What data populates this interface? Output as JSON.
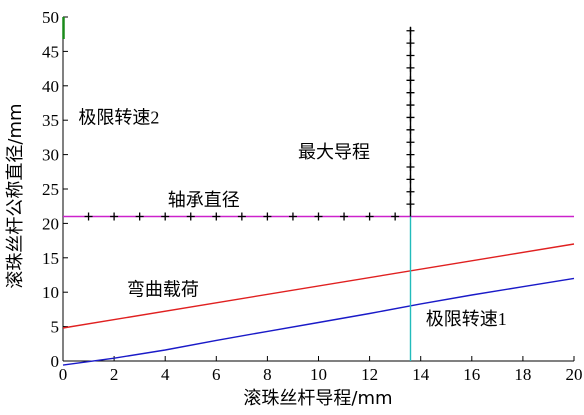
{
  "chart_data": {
    "type": "line",
    "xlabel": "滚珠丝杆导程/mm",
    "ylabel": "滚珠丝杆公称直径/mm",
    "xlim": [
      0,
      20
    ],
    "ylim": [
      0,
      50
    ],
    "xticks": [
      "0",
      "2",
      "4",
      "6",
      "8",
      "10",
      "12",
      "14",
      "16",
      "18",
      "20"
    ],
    "yticks": [
      "0",
      "5",
      "10",
      "15",
      "20",
      "25",
      "30",
      "35",
      "40",
      "45",
      "50"
    ],
    "grid": false,
    "series": [
      {
        "key": "bending",
        "x": [
          0,
          20
        ],
        "y": [
          4.8,
          17.0
        ],
        "color": "#e02020"
      },
      {
        "key": "speed1",
        "x": [
          0,
          2,
          4,
          6,
          8,
          10,
          12,
          14,
          16,
          18,
          20
        ],
        "y": [
          -0.6,
          0.4,
          1.6,
          3.0,
          4.3,
          5.6,
          6.9,
          8.3,
          9.6,
          10.8,
          12.0
        ],
        "color": "#1a1ac8"
      },
      {
        "key": "bearing",
        "x": [
          0,
          20
        ],
        "y": [
          21,
          21
        ],
        "color": "#cc22cc",
        "markers": [
          1,
          2,
          3,
          4,
          5,
          6,
          7,
          8,
          9,
          10,
          11,
          12,
          13
        ]
      },
      {
        "key": "maxlead",
        "x": [
          13.6,
          13.6
        ],
        "y": [
          0,
          21
        ],
        "color": "#22bbbb"
      },
      {
        "key": "maxlead-upper",
        "x": [
          13.6,
          13.6
        ],
        "y": [
          21,
          48.5
        ],
        "color": "#000000",
        "markers": [
          22.8,
          24.6,
          26.4,
          28.2,
          30.0,
          31.8,
          33.6,
          35.4,
          37.2,
          39.0,
          40.8,
          42.6,
          44.4,
          46.2,
          48.0
        ]
      },
      {
        "key": "speed2",
        "x": [
          0.02,
          0.02
        ],
        "y": [
          46.8,
          50
        ],
        "color": "#1a8a1a"
      }
    ],
    "annotations": [
      {
        "key": "speed2",
        "text": "极限转速2",
        "x": 0.6,
        "y": 34.5
      },
      {
        "key": "maxlead",
        "text": "最大导程",
        "x": 9.2,
        "y": 29.5
      },
      {
        "key": "bearing",
        "text": "轴承直径",
        "x": 4.1,
        "y": 22.5
      },
      {
        "key": "bending",
        "text": "弯曲载荷",
        "x": 2.5,
        "y": 9.5
      },
      {
        "key": "speed1",
        "text": "极限转速1",
        "x": 14.2,
        "y": 5.2
      }
    ]
  }
}
